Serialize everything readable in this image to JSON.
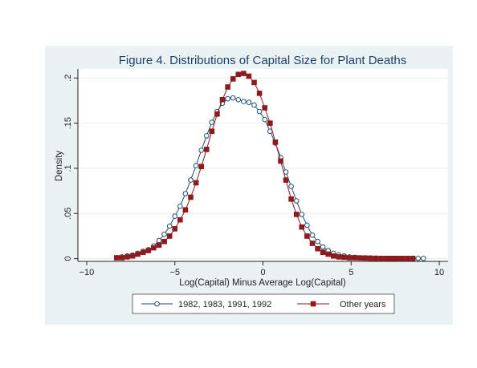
{
  "chart_data": {
    "type": "line",
    "title": "Figure 4.  Distributions of Capital Size for Plant Deaths",
    "xlabel": "Log(Capital) Minus Average Log(Capital)",
    "ylabel": "Density",
    "xlim": [
      -10.5,
      10.5
    ],
    "ylim": [
      -0.003,
      0.21
    ],
    "xticks": [
      -10,
      -5,
      0,
      5,
      10
    ],
    "xtick_labels": [
      "−10",
      "−5",
      "0",
      "5",
      "10"
    ],
    "yticks": [
      0,
      0.05,
      0.1,
      0.15,
      0.2
    ],
    "ytick_labels": [
      "0",
      ".05",
      ".1",
      ".15",
      ".2"
    ],
    "grid": true,
    "legend_position": "bottom",
    "colors": {
      "series1": "#1d4f72",
      "series2": "#8e1a1e",
      "plot_bg": "#ffffff",
      "outer_bg": "#eaf2f3",
      "title": "#1e3f66"
    },
    "series": [
      {
        "name": "1982, 1983, 1991, 1992",
        "marker": "hollow-circle",
        "x": [
          -8.3,
          -8.0,
          -7.7,
          -7.4,
          -7.1,
          -6.8,
          -6.5,
          -6.2,
          -5.9,
          -5.6,
          -5.3,
          -5.0,
          -4.7,
          -4.4,
          -4.1,
          -3.8,
          -3.5,
          -3.2,
          -2.9,
          -2.6,
          -2.3,
          -2.0,
          -1.7,
          -1.4,
          -1.1,
          -0.8,
          -0.5,
          -0.2,
          0.1,
          0.4,
          0.7,
          1.0,
          1.3,
          1.6,
          1.9,
          2.2,
          2.5,
          2.8,
          3.1,
          3.4,
          3.7,
          4.0,
          4.3,
          4.6,
          4.9,
          5.2,
          5.5,
          5.8,
          6.1,
          6.4,
          6.7,
          7.0,
          7.3,
          7.6,
          7.9,
          8.2,
          8.5,
          8.8,
          9.1
        ],
        "values": [
          0.001,
          0.002,
          0.003,
          0.004,
          0.006,
          0.008,
          0.01,
          0.014,
          0.02,
          0.027,
          0.036,
          0.047,
          0.058,
          0.072,
          0.087,
          0.103,
          0.12,
          0.136,
          0.151,
          0.163,
          0.172,
          0.177,
          0.178,
          0.176,
          0.174,
          0.173,
          0.17,
          0.163,
          0.154,
          0.141,
          0.128,
          0.112,
          0.096,
          0.08,
          0.064,
          0.049,
          0.037,
          0.026,
          0.019,
          0.013,
          0.009,
          0.006,
          0.004,
          0.003,
          0.002,
          0.0015,
          0.001,
          0.001,
          0.0008,
          0.0006,
          0.0005,
          0.0004,
          0.0003,
          0.0003,
          0.0003,
          0.0003,
          0.0003,
          0.0003,
          0.0003
        ]
      },
      {
        "name": "Other years",
        "marker": "filled-square",
        "x": [
          -8.3,
          -8.0,
          -7.7,
          -7.4,
          -7.1,
          -6.8,
          -6.5,
          -6.2,
          -5.9,
          -5.6,
          -5.3,
          -5.0,
          -4.7,
          -4.4,
          -4.1,
          -3.8,
          -3.5,
          -3.2,
          -2.9,
          -2.6,
          -2.3,
          -2.0,
          -1.7,
          -1.4,
          -1.1,
          -0.8,
          -0.5,
          -0.2,
          0.1,
          0.4,
          0.7,
          1.0,
          1.3,
          1.6,
          1.9,
          2.2,
          2.5,
          2.8,
          3.1,
          3.4,
          3.7,
          4.0,
          4.3,
          4.6,
          4.9,
          5.2,
          5.5,
          5.8,
          6.1,
          6.4,
          6.7,
          7.0,
          7.3,
          7.6,
          7.9,
          8.2,
          8.5
        ],
        "values": [
          0.001,
          0.001,
          0.002,
          0.003,
          0.005,
          0.007,
          0.009,
          0.012,
          0.015,
          0.019,
          0.025,
          0.033,
          0.043,
          0.054,
          0.068,
          0.084,
          0.102,
          0.121,
          0.141,
          0.16,
          0.176,
          0.19,
          0.199,
          0.204,
          0.205,
          0.202,
          0.195,
          0.183,
          0.167,
          0.15,
          0.129,
          0.108,
          0.087,
          0.066,
          0.049,
          0.035,
          0.025,
          0.017,
          0.011,
          0.007,
          0.005,
          0.003,
          0.002,
          0.0015,
          0.001,
          0.001,
          0.0008,
          0.0006,
          0.0005,
          0.0004,
          0.0003,
          0.0003,
          0.0003,
          0.0003,
          0.0003,
          0.0003,
          0.0003
        ]
      }
    ]
  }
}
